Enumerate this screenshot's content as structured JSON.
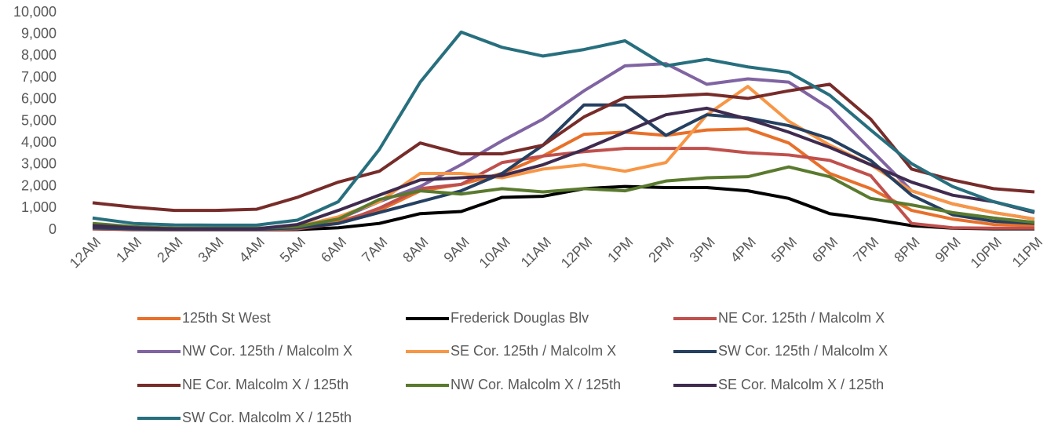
{
  "chart_data": {
    "type": "line",
    "categories": [
      "12AM",
      "1AM",
      "2AM",
      "3AM",
      "4AM",
      "5AM",
      "6AM",
      "7AM",
      "8AM",
      "9AM",
      "10AM",
      "11AM",
      "12PM",
      "1PM",
      "2PM",
      "3PM",
      "4PM",
      "5PM",
      "6PM",
      "7PM",
      "8PM",
      "9PM",
      "10PM",
      "11PM"
    ],
    "ylim": [
      0,
      10000
    ],
    "yticks": [
      0,
      {
        "value": 1000,
        "label": "1,000"
      },
      {
        "value": 2000,
        "label": "2,000"
      },
      {
        "value": 3000,
        "label": "3,000"
      },
      {
        "value": 4000,
        "label": "4,000"
      },
      {
        "value": 5000,
        "label": "5,000"
      },
      {
        "value": 6000,
        "label": "6,000"
      },
      {
        "value": 7000,
        "label": "7,000"
      },
      {
        "value": 8000,
        "label": "8,000"
      },
      {
        "value": 9000,
        "label": "9,000"
      },
      {
        "value": 10000,
        "label": "10,000"
      }
    ],
    "legend": "bottom",
    "series": [
      {
        "name": "125th St West",
        "color": "#e8702a",
        "values": [
          100,
          50,
          30,
          30,
          30,
          100,
          400,
          900,
          1800,
          2100,
          2600,
          3400,
          4400,
          4500,
          4350,
          4600,
          4650,
          4000,
          2600,
          1900,
          900,
          500,
          250,
          200
        ]
      },
      {
        "name": "Frederick Douglas Blv",
        "color": "#000000",
        "values": [
          50,
          20,
          10,
          10,
          10,
          20,
          100,
          300,
          750,
          850,
          1500,
          1550,
          1900,
          2000,
          1950,
          1950,
          1800,
          1450,
          750,
          500,
          200,
          80,
          50,
          50
        ]
      },
      {
        "name": "NE Cor. 125th / Malcolm X",
        "color": "#c0504d",
        "values": [
          50,
          30,
          20,
          20,
          20,
          50,
          300,
          1000,
          1900,
          2100,
          3100,
          3400,
          3600,
          3750,
          3750,
          3750,
          3550,
          3450,
          3200,
          2500,
          300,
          100,
          80,
          80
        ]
      },
      {
        "name": "NW Cor. 125th / Malcolm X",
        "color": "#8064a2",
        "values": [
          150,
          80,
          50,
          50,
          50,
          150,
          500,
          1300,
          2000,
          3000,
          4100,
          5100,
          6400,
          7550,
          7650,
          6700,
          6950,
          6800,
          5600,
          3700,
          1800,
          1200,
          800,
          500
        ]
      },
      {
        "name": "SE Cor. 125th / Malcolm X",
        "color": "#f79646",
        "values": [
          200,
          100,
          50,
          50,
          50,
          150,
          600,
          1300,
          2600,
          2600,
          2400,
          2800,
          3000,
          2700,
          3100,
          5300,
          6600,
          5000,
          3900,
          3000,
          1800,
          1200,
          800,
          500
        ]
      },
      {
        "name": "SW Cor. 125th / Malcolm X",
        "color": "#254061",
        "values": [
          100,
          50,
          30,
          30,
          30,
          100,
          300,
          800,
          1300,
          1800,
          2600,
          3900,
          5750,
          5750,
          4350,
          5300,
          5150,
          4800,
          4200,
          3200,
          1600,
          700,
          400,
          300
        ]
      },
      {
        "name": "NE Cor. Malcolm X / 125th",
        "color": "#772c2a",
        "values": [
          1250,
          1050,
          900,
          900,
          950,
          1500,
          2200,
          2700,
          4000,
          3500,
          3500,
          3900,
          5200,
          6100,
          6150,
          6250,
          6050,
          6400,
          6700,
          5100,
          2800,
          2300,
          1900,
          1750
        ]
      },
      {
        "name": "NW Cor. Malcolm X / 125th",
        "color": "#5a7a2e",
        "values": [
          300,
          150,
          80,
          80,
          80,
          150,
          500,
          1400,
          1800,
          1650,
          1900,
          1750,
          1900,
          1800,
          2250,
          2400,
          2450,
          2900,
          2450,
          1450,
          1150,
          800,
          550,
          350
        ]
      },
      {
        "name": "SE Cor. Malcolm X / 125th",
        "color": "#3f2b4f",
        "values": [
          200,
          100,
          50,
          50,
          50,
          250,
          900,
          1600,
          2300,
          2400,
          2500,
          3000,
          3700,
          4500,
          5300,
          5600,
          5100,
          4500,
          3800,
          3000,
          2200,
          1600,
          1300,
          800
        ]
      },
      {
        "name": "SW Cor. Malcolm X / 125th",
        "color": "#276f7e",
        "values": [
          550,
          300,
          230,
          220,
          220,
          450,
          1300,
          3700,
          6800,
          9100,
          8400,
          8000,
          8300,
          8700,
          7550,
          7850,
          7500,
          7250,
          6200,
          4600,
          3050,
          2000,
          1300,
          850
        ]
      }
    ]
  }
}
